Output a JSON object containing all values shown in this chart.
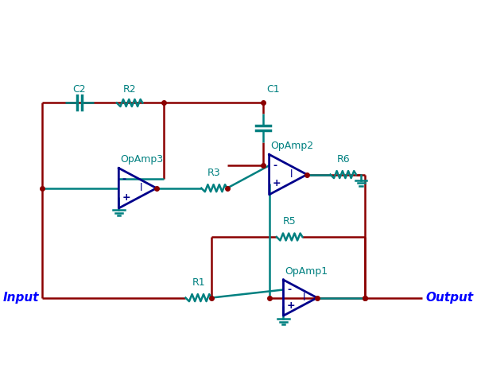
{
  "wire_color": "#8B0000",
  "component_color": "#008080",
  "opamp_color": "#00008B",
  "text_color_teal": "#008080",
  "text_color_blue": "#0000FF",
  "bg_color": "#FFFFFF",
  "labels": {
    "C1": "C1",
    "C2": "C2",
    "R1": "R1",
    "R2": "R2",
    "R3": "R3",
    "R5": "R5",
    "R6": "R6",
    "OpAmp1": "OpAmp1",
    "OpAmp2": "OpAmp2",
    "OpAmp3": "OpAmp3",
    "Input": "Input",
    "Output": "Output"
  }
}
